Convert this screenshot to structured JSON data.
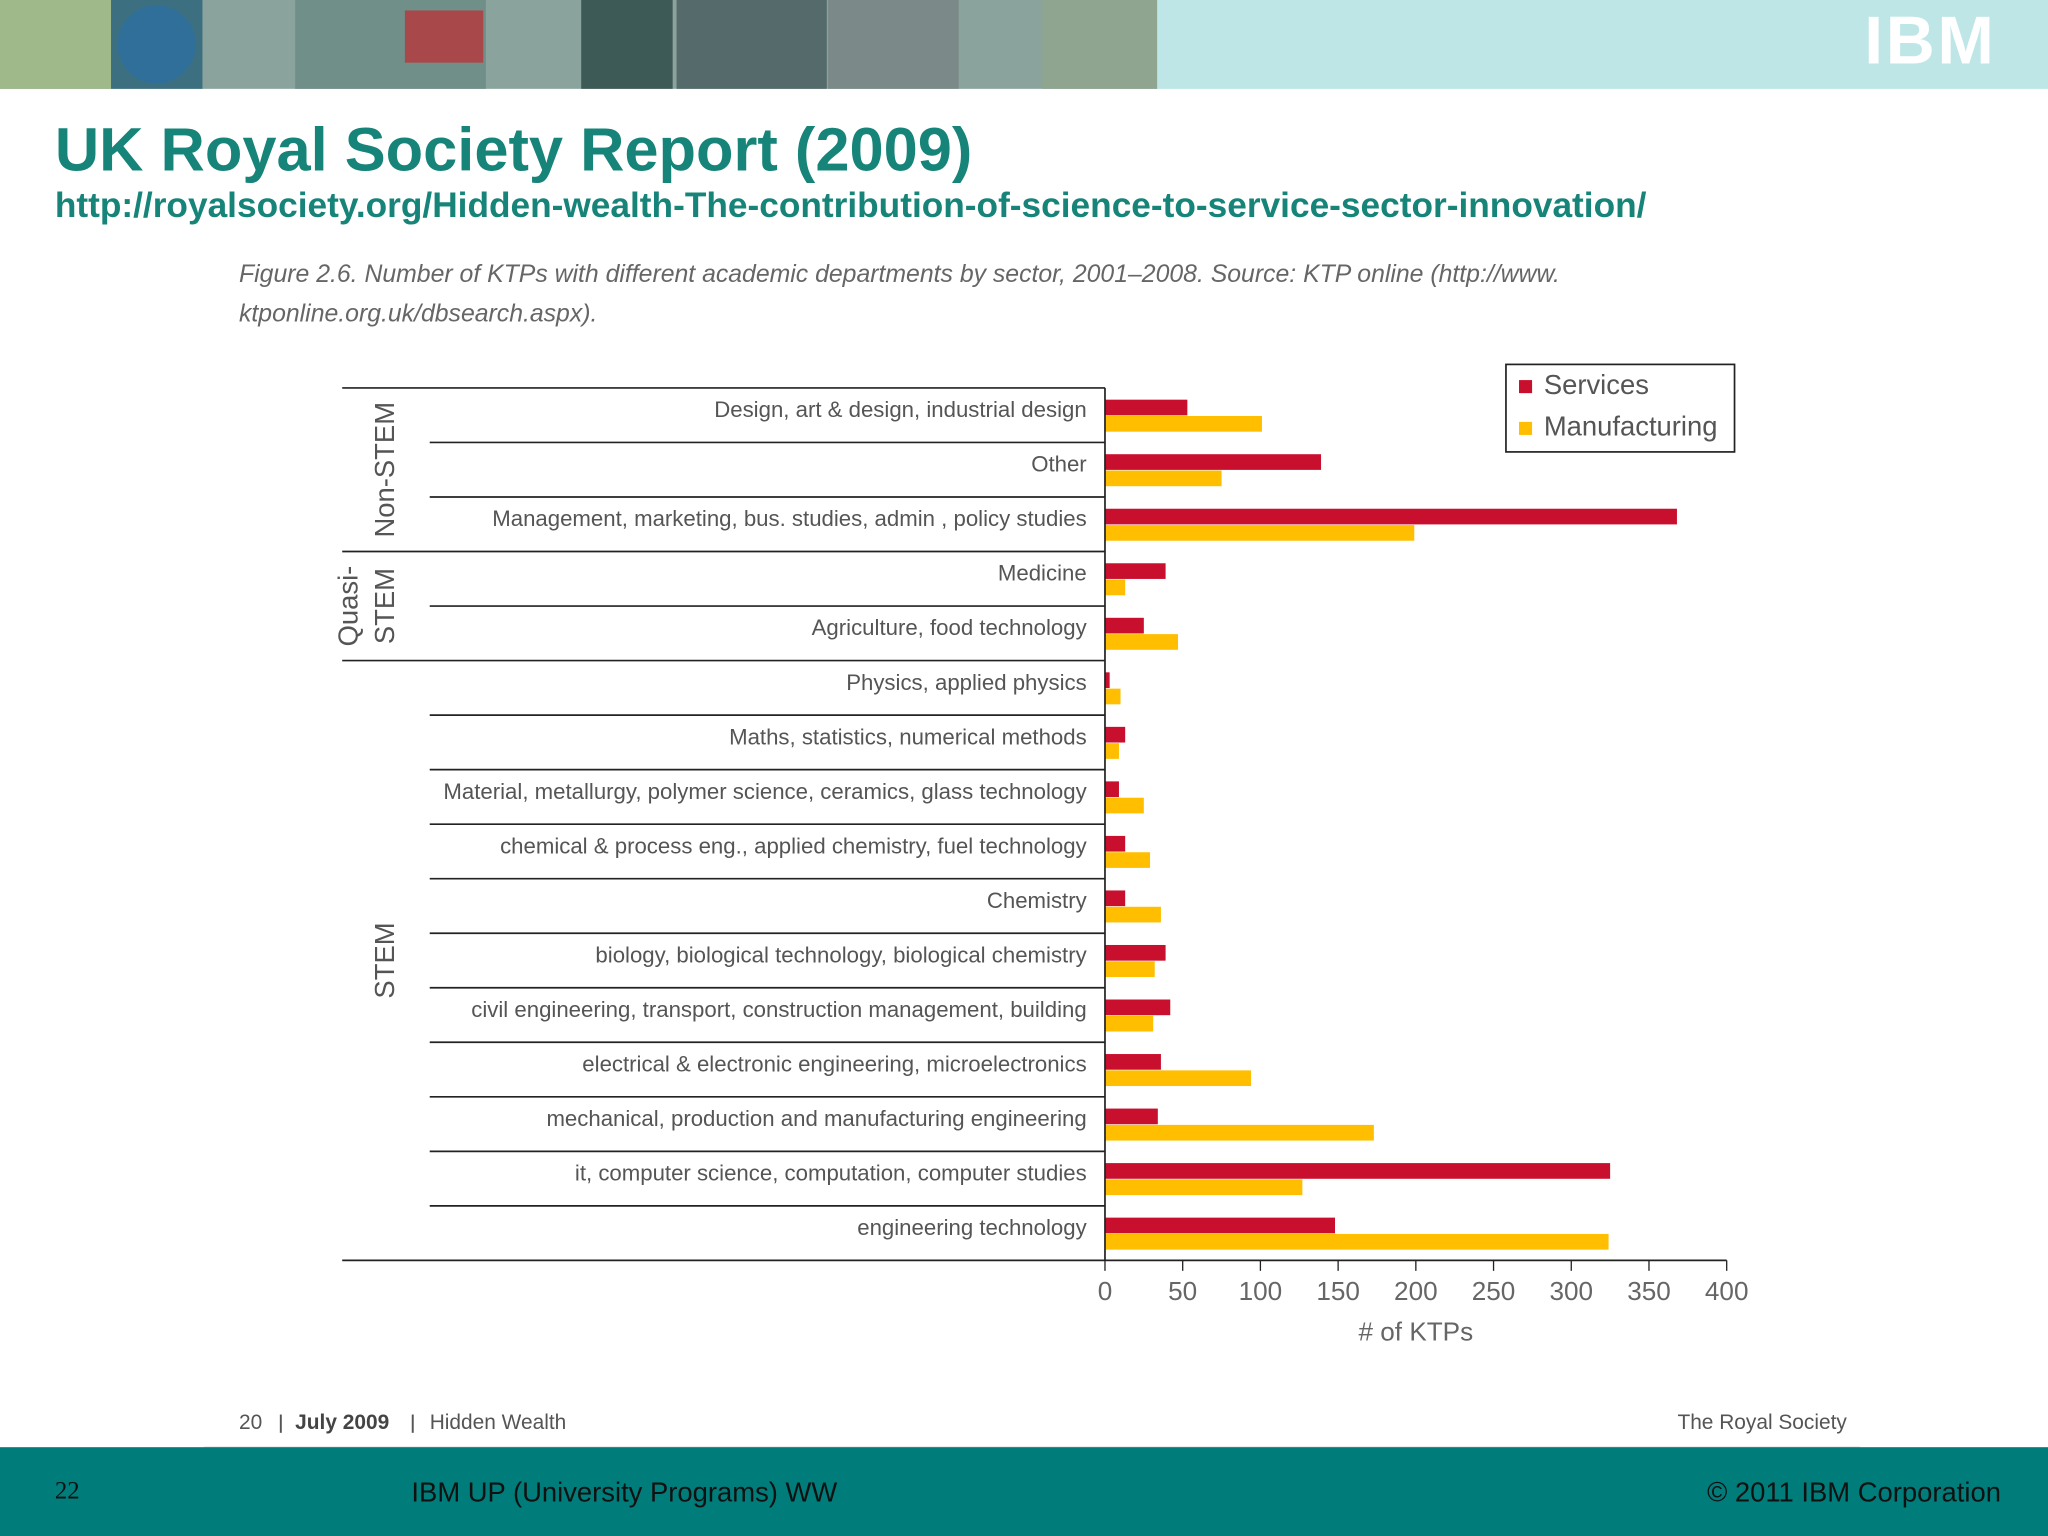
{
  "header": {
    "logo": "IBM",
    "title": "UK Royal Society Report (2009)",
    "url": "http://royalsociety.org/Hidden-wealth-The-contribution-of-science-to-service-sector-innovation/"
  },
  "figure": {
    "caption": [
      "Figure 2.6.  Number of KTPs with different academic departments by sector, 2001–2008. Source: KTP online (http://www.",
      "ktponline.org.uk/dbsearch.aspx)."
    ],
    "footer": {
      "page": "20",
      "date": "July 2009",
      "publication": "Hidden Wealth",
      "publisher": "The Royal Society"
    }
  },
  "chart_data": {
    "type": "hbar",
    "xlabel": "# of KTPs",
    "xlim": [
      0,
      400
    ],
    "xticks": [
      0,
      50,
      100,
      150,
      200,
      250,
      300,
      350,
      400
    ],
    "legend": "top-right",
    "groups": [
      {
        "label": [
          "Non-STEM"
        ],
        "categories": [
          "Design, art & design, industrial design",
          "Other",
          "Management, marketing, bus. studies, admin , policy studies"
        ]
      },
      {
        "label": [
          "Quasi-",
          "STEM"
        ],
        "categories": [
          "Medicine",
          "Agriculture, food  technology"
        ]
      },
      {
        "label": [
          "STEM"
        ],
        "categories": [
          "Physics, applied physics",
          "Maths, statistics, numerical methods",
          "Material, metallurgy, polymer science, ceramics, glass technology",
          "chemical & process eng., applied chemistry, fuel technology",
          "Chemistry",
          "biology, biological  technology, biological chemistry",
          "civil engineering, transport, construction management, building",
          "electrical & electronic engineering, microelectronics",
          "mechanical, production and manufacturing engineering",
          "it, computer science, computation, computer studies",
          "engineering technology"
        ]
      }
    ],
    "series": [
      {
        "name": "Services",
        "color": "#c8102e",
        "values": [
          53,
          139,
          368,
          39,
          25,
          3,
          13,
          9,
          13,
          13,
          39,
          42,
          36,
          34,
          325,
          148
        ]
      },
      {
        "name": "Manufacturing",
        "color": "#ffbf00",
        "values": [
          101,
          75,
          199,
          13,
          47,
          10,
          9,
          25,
          29,
          36,
          32,
          31,
          94,
          173,
          127,
          324
        ]
      }
    ]
  },
  "slide_footer": {
    "number": "22",
    "program": "IBM UP (University Programs) WW",
    "copyright": "© 2011 IBM Corporation"
  }
}
